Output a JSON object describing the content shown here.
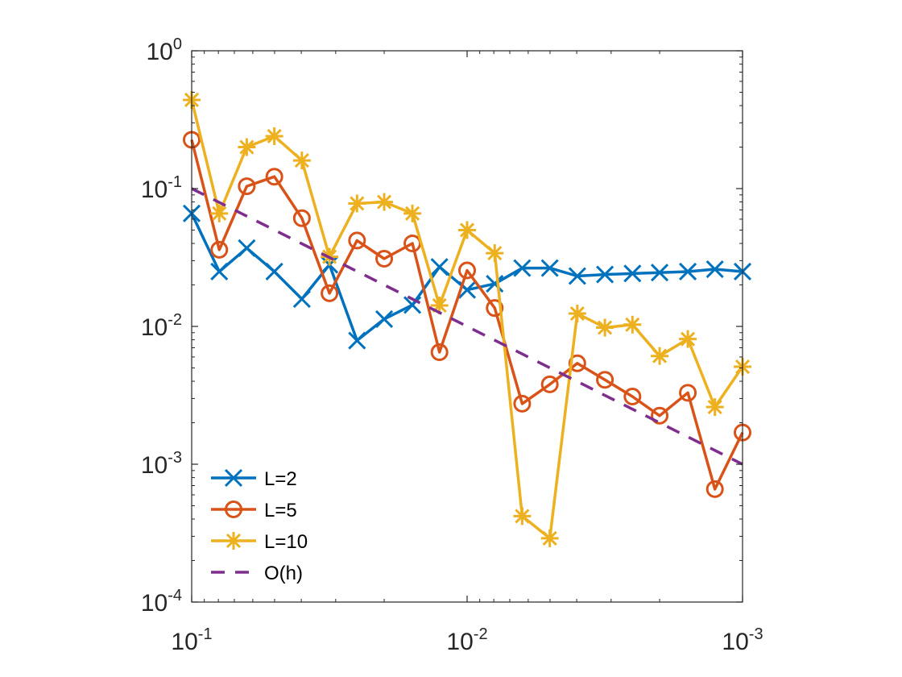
{
  "chart_data": {
    "type": "line",
    "title": "",
    "xlabel": "",
    "ylabel": "",
    "xscale": "log",
    "yscale": "log",
    "xlim": [
      0.1,
      0.001
    ],
    "ylim": [
      0.0001,
      1
    ],
    "x_reversed": true,
    "grid": false,
    "legend_position": "bottom-left",
    "x_ticks": [
      {
        "value": 0.1,
        "base": "10",
        "exp": "-1"
      },
      {
        "value": 0.01,
        "base": "10",
        "exp": "-2"
      },
      {
        "value": 0.001,
        "base": "10",
        "exp": "-3"
      }
    ],
    "y_ticks": [
      {
        "value": 1,
        "base": "10",
        "exp": "0"
      },
      {
        "value": 0.1,
        "base": "10",
        "exp": "-1"
      },
      {
        "value": 0.01,
        "base": "10",
        "exp": "-2"
      },
      {
        "value": 0.001,
        "base": "10",
        "exp": "-3"
      },
      {
        "value": 0.0001,
        "base": "10",
        "exp": "-4"
      }
    ],
    "x": [
      0.1,
      0.0794,
      0.0631,
      0.0501,
      0.0398,
      0.0316,
      0.0251,
      0.02,
      0.0158,
      0.0126,
      0.01,
      0.00794,
      0.00631,
      0.00501,
      0.00398,
      0.00316,
      0.00251,
      0.002,
      0.00158,
      0.00126,
      0.001
    ],
    "series": [
      {
        "name": "L=2",
        "color": "#0072BD",
        "marker": "x",
        "linestyle": "solid",
        "values": [
          0.066,
          0.025,
          0.037,
          0.025,
          0.0158,
          0.028,
          0.0079,
          0.0113,
          0.0143,
          0.027,
          0.0184,
          0.0204,
          0.0265,
          0.0265,
          0.0232,
          0.0238,
          0.0242,
          0.0246,
          0.025,
          0.026,
          0.025
        ]
      },
      {
        "name": "L=5",
        "color": "#D95319",
        "marker": "o",
        "linestyle": "solid",
        "values": [
          0.226,
          0.036,
          0.104,
          0.122,
          0.061,
          0.0174,
          0.042,
          0.031,
          0.04,
          0.0065,
          0.0255,
          0.0136,
          0.00275,
          0.0038,
          0.0054,
          0.0041,
          0.0031,
          0.00225,
          0.0033,
          0.00066,
          0.0017
        ]
      },
      {
        "name": "L=10",
        "color": "#EDB120",
        "marker": "*",
        "linestyle": "solid",
        "values": [
          0.44,
          0.066,
          0.2,
          0.24,
          0.16,
          0.032,
          0.078,
          0.08,
          0.066,
          0.0142,
          0.05,
          0.034,
          0.00042,
          0.00029,
          0.0124,
          0.0098,
          0.0103,
          0.0061,
          0.0081,
          0.0026,
          0.0051
        ]
      },
      {
        "name": "O(h)",
        "color": "#7E2F8E",
        "marker": "none",
        "linestyle": "dashed",
        "x": [
          0.1,
          0.001
        ],
        "values": [
          0.1,
          0.001
        ]
      }
    ]
  }
}
